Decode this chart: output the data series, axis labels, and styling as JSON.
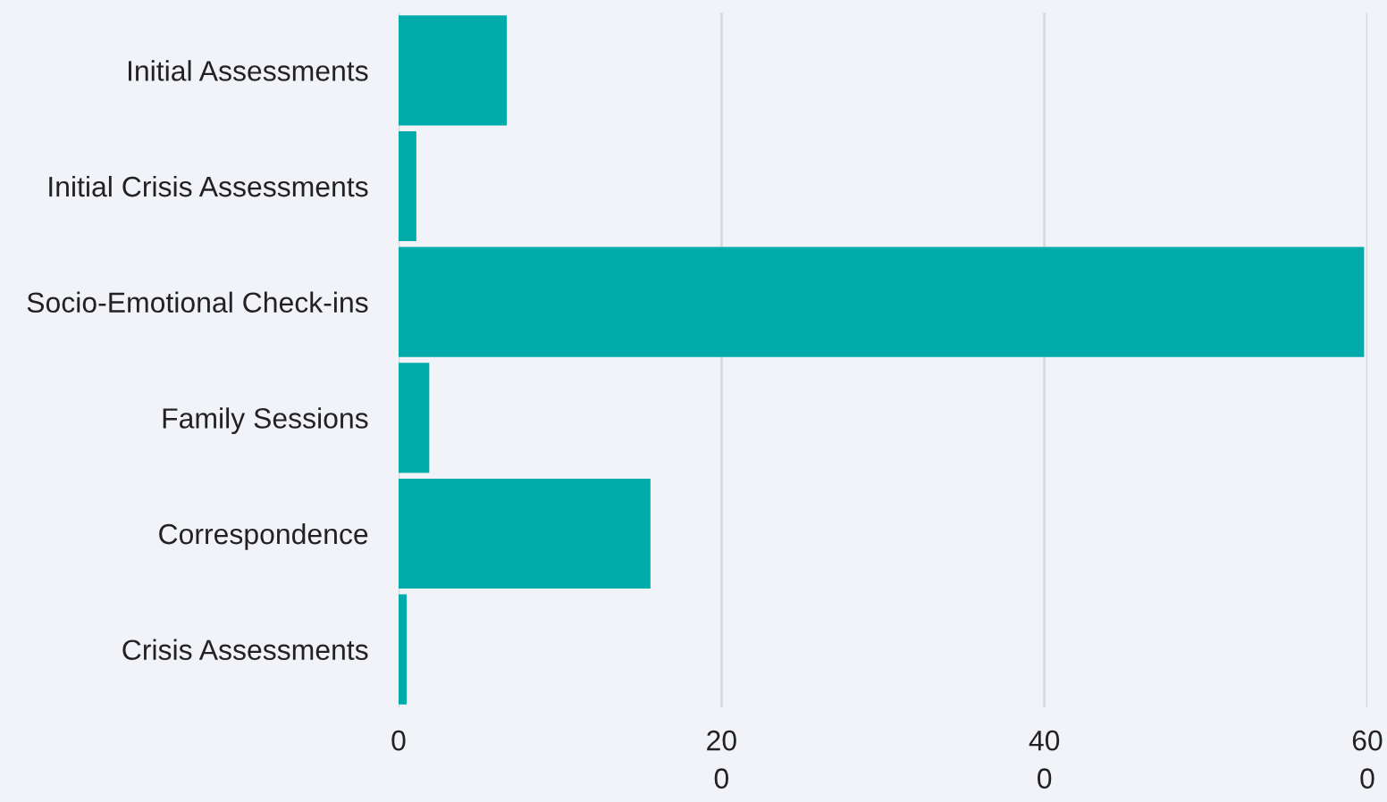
{
  "chart_data": {
    "type": "bar",
    "orientation": "horizontal",
    "categories": [
      "Initial Assessments",
      "Initial Crisis Assessments",
      "Socio-Emotional Check-ins",
      "Family Sessions",
      "Correspondence",
      "Crisis Assessments"
    ],
    "values": [
      67,
      11,
      598,
      19,
      156,
      5
    ],
    "color": "#00aba9",
    "xlim": [
      0,
      600
    ],
    "xticks": [
      0,
      200,
      400,
      600
    ],
    "grid": "x"
  }
}
